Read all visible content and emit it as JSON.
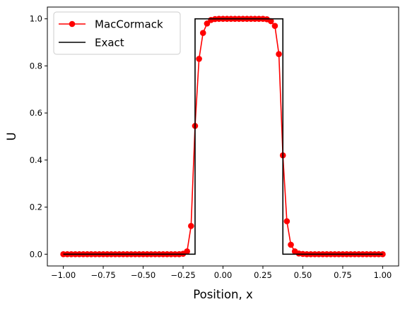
{
  "chart_data": {
    "type": "line",
    "xlabel": "Position, x",
    "ylabel": "U",
    "xlim": [
      -1.1,
      1.1
    ],
    "ylim": [
      -0.05,
      1.05
    ],
    "xticks": [
      -1.0,
      -0.75,
      -0.5,
      -0.25,
      0.0,
      0.25,
      0.5,
      0.75,
      1.0
    ],
    "xtick_labels": [
      "−1.00",
      "−0.75",
      "−0.50",
      "−0.25",
      "0.00",
      "0.25",
      "0.50",
      "0.75",
      "1.00"
    ],
    "yticks": [
      0.0,
      0.2,
      0.4,
      0.6,
      0.8,
      1.0
    ],
    "ytick_labels": [
      "0.0",
      "0.2",
      "0.4",
      "0.6",
      "0.8",
      "1.0"
    ],
    "grid": false,
    "legend": {
      "position": "top-left"
    },
    "series": [
      {
        "name": "MacCormack",
        "color": "#ff0000",
        "marker": "circle",
        "x": [
          -1.0,
          -0.975,
          -0.95,
          -0.925,
          -0.9,
          -0.875,
          -0.85,
          -0.825,
          -0.8,
          -0.775,
          -0.75,
          -0.725,
          -0.7,
          -0.675,
          -0.65,
          -0.625,
          -0.6,
          -0.575,
          -0.55,
          -0.525,
          -0.5,
          -0.475,
          -0.45,
          -0.425,
          -0.4,
          -0.375,
          -0.35,
          -0.325,
          -0.3,
          -0.275,
          -0.25,
          -0.225,
          -0.2,
          -0.175,
          -0.15,
          -0.125,
          -0.1,
          -0.075,
          -0.05,
          -0.025,
          0.0,
          0.025,
          0.05,
          0.075,
          0.1,
          0.125,
          0.15,
          0.175,
          0.2,
          0.225,
          0.25,
          0.275,
          0.3,
          0.325,
          0.35,
          0.375,
          0.4,
          0.425,
          0.45,
          0.475,
          0.5,
          0.525,
          0.55,
          0.575,
          0.6,
          0.625,
          0.65,
          0.675,
          0.7,
          0.725,
          0.75,
          0.775,
          0.8,
          0.825,
          0.85,
          0.875,
          0.9,
          0.925,
          0.95,
          0.975,
          1.0
        ],
        "y": [
          0,
          0,
          0,
          0,
          0,
          0,
          0,
          0,
          0,
          0,
          0,
          0,
          0,
          0,
          0,
          0,
          0,
          0,
          0,
          0,
          0,
          0,
          0,
          0,
          0,
          0,
          0,
          0,
          0,
          0,
          0.002,
          0.012,
          0.12,
          0.545,
          0.83,
          0.94,
          0.98,
          0.995,
          0.999,
          1.0,
          1.0,
          1.0,
          1.0,
          1.0,
          1.0,
          1.0,
          1.0,
          1.0,
          1.0,
          1.0,
          1.0,
          0.998,
          0.99,
          0.97,
          0.85,
          0.42,
          0.14,
          0.04,
          0.012,
          0.003,
          0.001,
          0,
          0,
          0,
          0,
          0,
          0,
          0,
          0,
          0,
          0,
          0,
          0,
          0,
          0,
          0,
          0,
          0,
          0,
          0,
          0
        ]
      },
      {
        "name": "Exact",
        "color": "#000000",
        "marker": "none",
        "x": [
          -1.0,
          -0.2,
          -0.2,
          -0.175,
          -0.175,
          0.35,
          0.35,
          0.375,
          0.375,
          1.0
        ],
        "y": [
          0,
          0,
          0,
          0,
          1,
          1,
          1,
          1,
          0,
          0
        ]
      }
    ]
  }
}
